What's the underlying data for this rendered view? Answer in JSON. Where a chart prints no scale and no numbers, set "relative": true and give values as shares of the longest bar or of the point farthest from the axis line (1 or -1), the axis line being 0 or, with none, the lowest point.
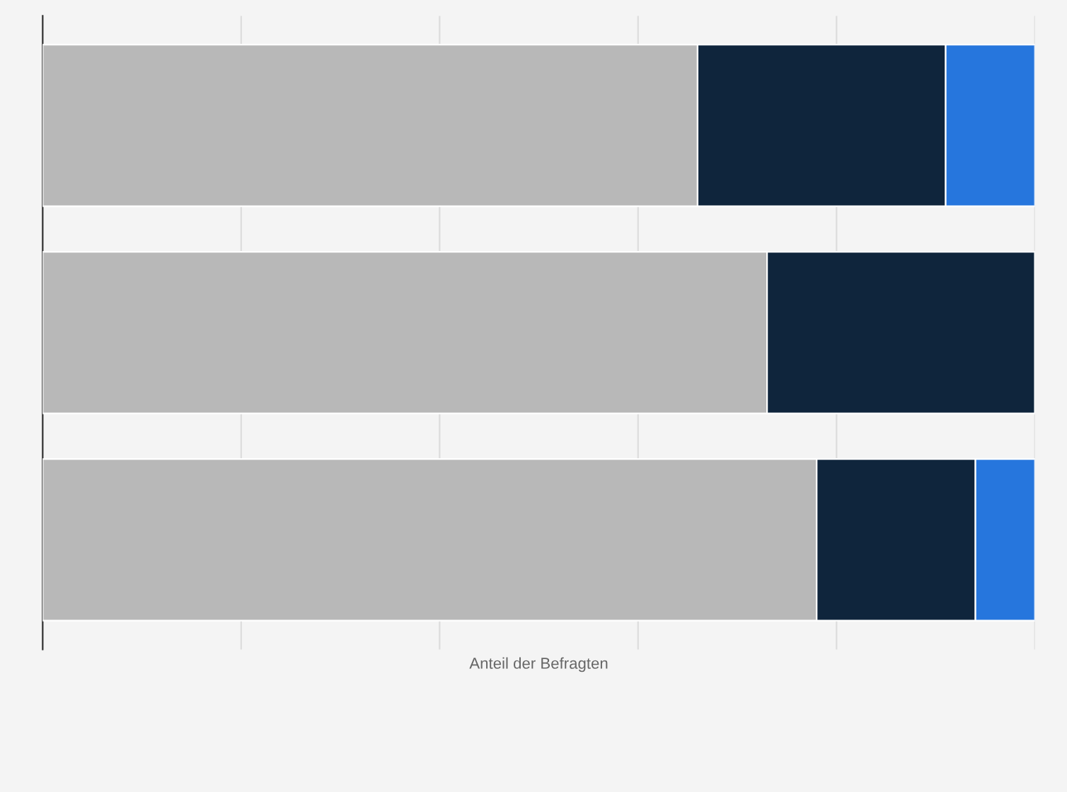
{
  "chart_data": {
    "type": "bar",
    "orientation": "horizontal",
    "stacked": true,
    "relative": true,
    "xlabel": "Anteil der Befragten",
    "categories": [
      null,
      null,
      null
    ],
    "series": [
      {
        "color": "#b8b8b8",
        "values": [
          0.66,
          0.73,
          0.78
        ]
      },
      {
        "color": "#0f253c",
        "values": [
          0.25,
          0.27,
          0.16
        ]
      },
      {
        "color": "#2676dd",
        "values": [
          0.09,
          null,
          0.06
        ]
      }
    ],
    "grid": "x"
  }
}
